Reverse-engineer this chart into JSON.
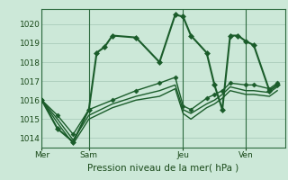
{
  "title": "Pression niveau de la mer( hPa )",
  "ylim": [
    1013.5,
    1020.8
  ],
  "yticks": [
    1014,
    1015,
    1016,
    1017,
    1018,
    1019,
    1020
  ],
  "bg_color": "#cce8d8",
  "grid_color": "#aaccbb",
  "line_color": "#1a5c2a",
  "xtick_labels": [
    "Mer",
    "Sam",
    "Jeu",
    "Ven"
  ],
  "xtick_positions": [
    0,
    3,
    9,
    13
  ],
  "vline_positions": [
    0,
    3,
    9,
    13
  ],
  "series": [
    {
      "x": [
        0,
        1,
        2,
        3,
        3.5,
        4.0,
        4.5,
        6.0,
        7.5,
        8.5,
        9.0,
        9.5,
        10.5,
        11.0,
        11.5,
        12.0,
        12.5,
        13.0,
        13.5,
        14.5,
        15.0
      ],
      "y": [
        1016.0,
        1014.5,
        1013.8,
        1015.5,
        1018.5,
        1018.8,
        1019.4,
        1019.3,
        1018.0,
        1020.5,
        1020.4,
        1019.4,
        1018.5,
        1016.8,
        1015.5,
        1019.4,
        1019.4,
        1019.1,
        1018.9,
        1016.5,
        1016.8
      ],
      "marker": "D",
      "markersize": 3,
      "linewidth": 1.5
    },
    {
      "x": [
        0,
        1,
        2,
        3,
        4.5,
        6.0,
        7.5,
        8.5,
        9.0,
        9.5,
        10.5,
        11.0,
        11.5,
        12.0,
        13.0,
        13.5,
        14.5,
        15.0
      ],
      "y": [
        1016.0,
        1015.2,
        1014.2,
        1015.5,
        1016.0,
        1016.5,
        1016.9,
        1017.2,
        1015.7,
        1015.5,
        1016.1,
        1016.3,
        1016.5,
        1016.9,
        1016.8,
        1016.8,
        1016.6,
        1016.9
      ],
      "marker": "D",
      "markersize": 2.5,
      "linewidth": 1.0
    },
    {
      "x": [
        0,
        1,
        2,
        3,
        4.5,
        6.0,
        7.5,
        8.5,
        9.0,
        9.5,
        10.5,
        11.0,
        11.5,
        12.0,
        13.0,
        13.5,
        14.5,
        15.0
      ],
      "y": [
        1016.0,
        1015.0,
        1013.9,
        1015.2,
        1015.8,
        1016.2,
        1016.5,
        1016.8,
        1015.5,
        1015.3,
        1015.8,
        1016.0,
        1016.3,
        1016.7,
        1016.5,
        1016.5,
        1016.4,
        1016.7
      ],
      "marker": null,
      "markersize": 0,
      "linewidth": 1.0
    },
    {
      "x": [
        0,
        1,
        2,
        3,
        4.5,
        6.0,
        7.5,
        8.5,
        9.0,
        9.5,
        10.5,
        11.0,
        11.5,
        12.0,
        13.0,
        13.5,
        14.5,
        15.0
      ],
      "y": [
        1016.0,
        1014.8,
        1013.7,
        1015.0,
        1015.6,
        1016.0,
        1016.2,
        1016.6,
        1015.3,
        1015.0,
        1015.6,
        1015.8,
        1016.1,
        1016.5,
        1016.3,
        1016.3,
        1016.2,
        1016.5
      ],
      "marker": null,
      "markersize": 0,
      "linewidth": 1.0
    }
  ],
  "xmin": 0,
  "xmax": 15.5
}
